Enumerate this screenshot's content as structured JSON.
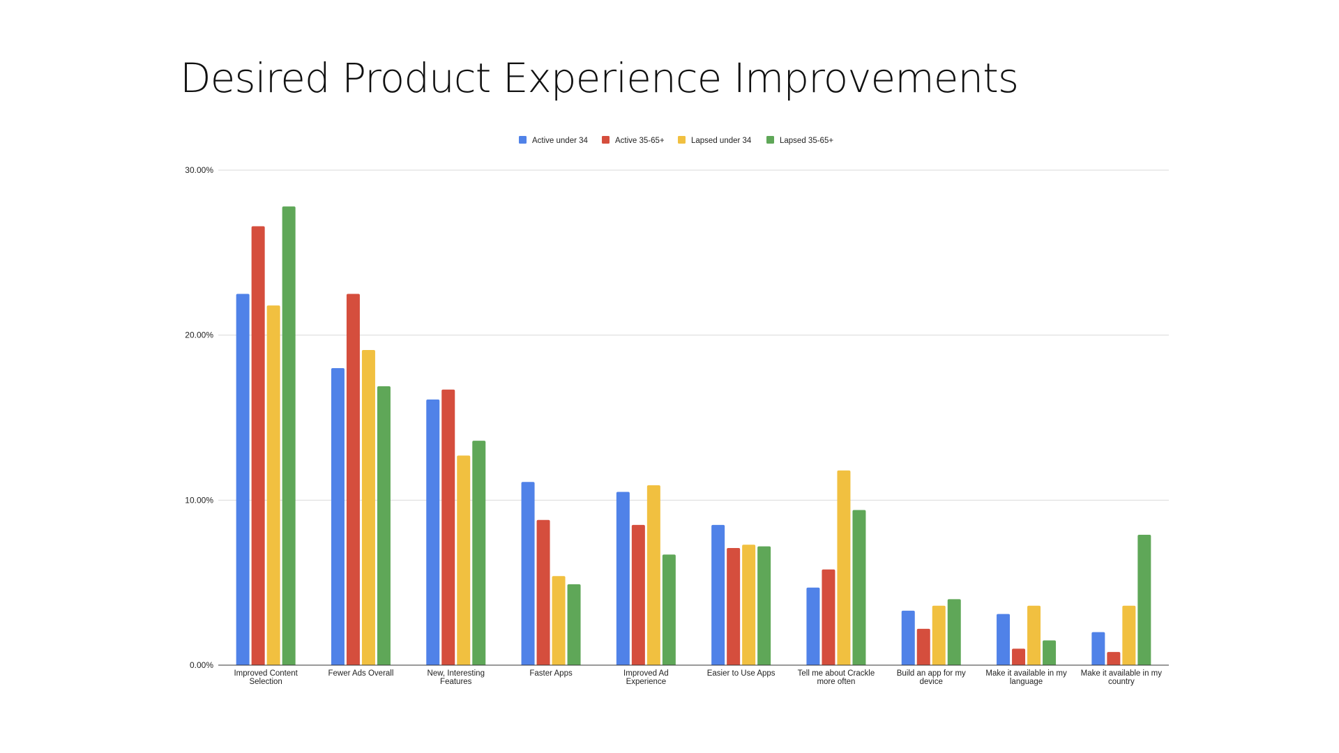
{
  "chart_data": {
    "type": "bar",
    "title": "Desired Product Experience Improvements",
    "categories": [
      [
        "Improved Content",
        "Selection"
      ],
      [
        "Fewer Ads Overall"
      ],
      [
        "New, Interesting",
        "Features"
      ],
      [
        "Faster Apps"
      ],
      [
        "Improved Ad",
        "Experience"
      ],
      [
        "Easier to Use Apps"
      ],
      [
        "Tell me about Crackle",
        "more often"
      ],
      [
        "Build an app for my",
        "device"
      ],
      [
        "Make it available in my",
        "language"
      ],
      [
        "Make it available in my",
        "country"
      ]
    ],
    "series": [
      {
        "name": "Active under 34",
        "color": "#5082E8",
        "values": [
          22.5,
          18.0,
          16.1,
          11.1,
          10.5,
          8.5,
          4.7,
          3.3,
          3.1,
          2.0
        ]
      },
      {
        "name": "Active 35-65+",
        "color": "#D54E3D",
        "values": [
          26.6,
          22.5,
          16.7,
          8.8,
          8.5,
          7.1,
          5.8,
          2.2,
          1.0,
          0.8
        ]
      },
      {
        "name": "Lapsed under 34",
        "color": "#F1C040",
        "values": [
          21.8,
          19.1,
          12.7,
          5.4,
          10.9,
          7.3,
          11.8,
          3.6,
          3.6,
          3.6
        ]
      },
      {
        "name": "Lapsed 35-65+",
        "color": "#5FA758",
        "values": [
          27.8,
          16.9,
          13.6,
          4.9,
          6.7,
          7.2,
          9.4,
          4.0,
          1.5,
          7.9
        ]
      }
    ],
    "yticks": [
      "0.00%",
      "10.00%",
      "20.00%",
      "30.00%"
    ],
    "ylim": [
      0,
      30
    ],
    "grid": true,
    "legend_position": "top-center"
  }
}
